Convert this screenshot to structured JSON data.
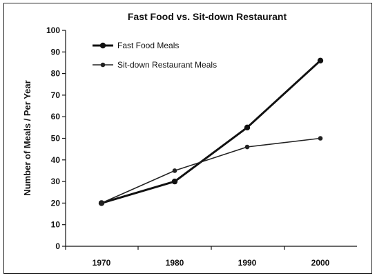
{
  "chart_data": {
    "type": "line",
    "title": "Fast Food vs. Sit-down Restaurant",
    "xlabel": "",
    "ylabel": "Number of Meals / Per Year",
    "x": [
      "1970",
      "1980",
      "1990",
      "2000"
    ],
    "ylim": [
      0,
      100
    ],
    "yticks": [
      0,
      10,
      20,
      30,
      40,
      50,
      60,
      70,
      80,
      90,
      100
    ],
    "grid": false,
    "legend_position": "top-left",
    "series": [
      {
        "name": "Fast Food Meals",
        "values": [
          20,
          30,
          55,
          86
        ],
        "color": "#111111",
        "style": "thick"
      },
      {
        "name": "Sit-down Restaurant  Meals",
        "values": [
          20,
          35,
          46,
          50
        ],
        "color": "#222222",
        "style": "thin"
      }
    ]
  }
}
